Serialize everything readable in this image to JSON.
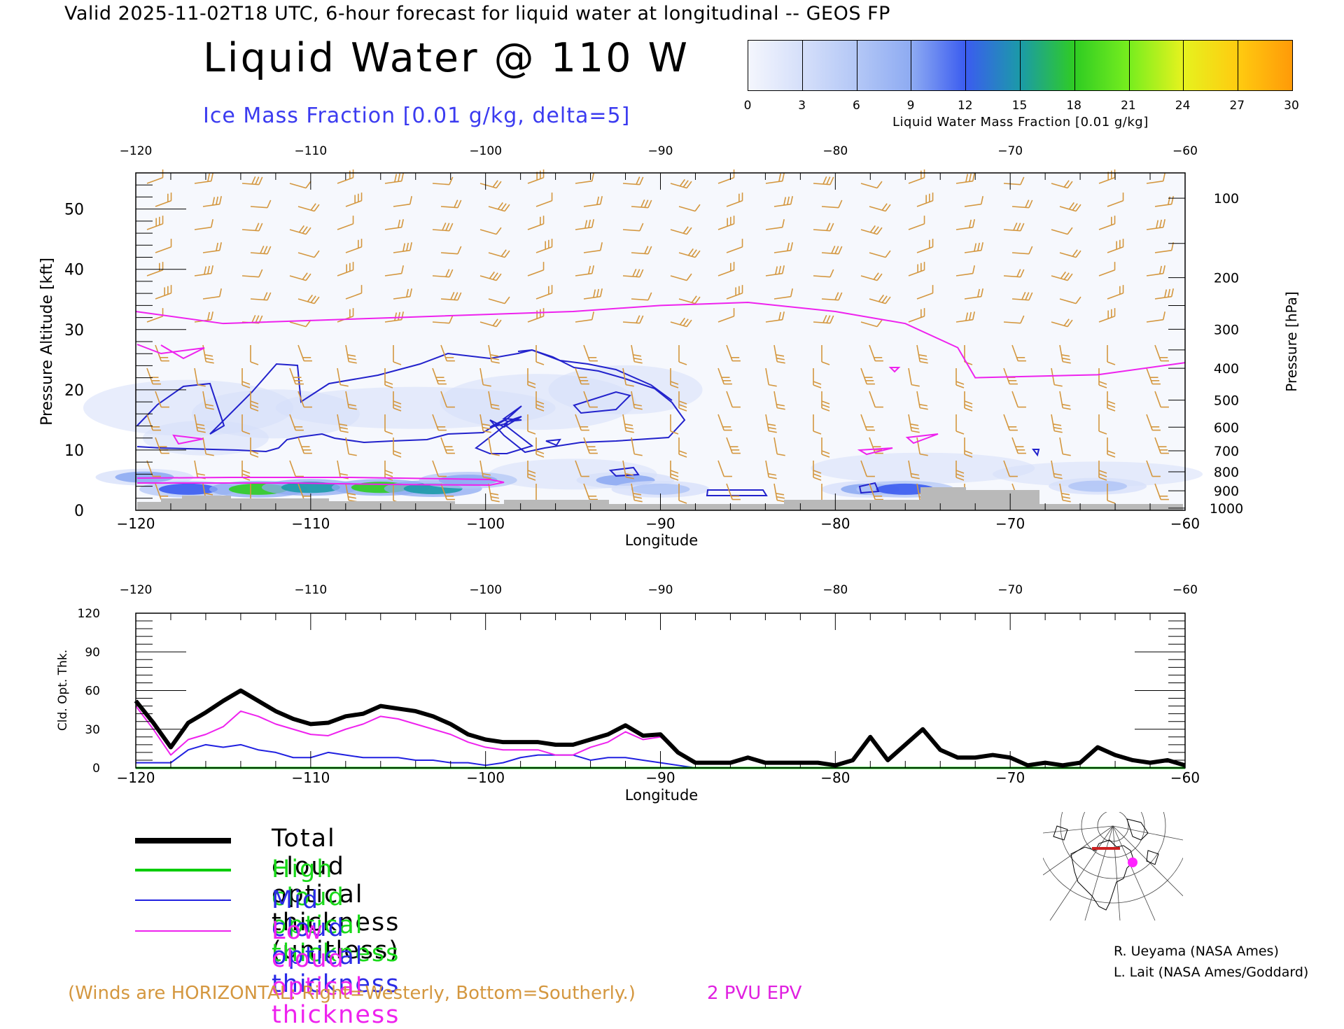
{
  "header": {
    "line": "Valid 2025-11-02T18 UTC, 6-hour forecast for liquid water at longitudinal -- GEOS FP",
    "title": "Liquid Water @ 110 W",
    "subtitle": "Ice Mass Fraction [0.01 g/kg, delta=5]"
  },
  "colorbar": {
    "ticks": [
      "0",
      "3",
      "6",
      "9",
      "12",
      "15",
      "18",
      "21",
      "24",
      "27",
      "30"
    ],
    "label": "Liquid Water Mass Fraction [0.01 g/kg]",
    "colors": [
      "#f4f6fd",
      "#d5dffa",
      "#b3c7f6",
      "#8eabf2",
      "#3b5cf0",
      "#1b9aa8",
      "#2fcc23",
      "#78ee1e",
      "#e6f21e",
      "#ffcb10",
      "#ff9a08",
      "#ff4a06"
    ]
  },
  "chart_data": [
    {
      "type": "heatmap",
      "title": "Liquid Water @ 110 W",
      "xlabel": "Longitude",
      "ylabel": "Pressure Altitude [kft]",
      "y2label": "Pressure [hPa]",
      "xlim": [
        -120,
        -60
      ],
      "ylim": [
        0,
        56
      ],
      "x_ticks": [
        "-120",
        "-110",
        "-100",
        "-90",
        "-80",
        "-70",
        "-60"
      ],
      "top_ticks": [
        "-120",
        "-110",
        "-100",
        "-90",
        "-80",
        "-70",
        "-60"
      ],
      "y_ticks": [
        "0",
        "10",
        "20",
        "30",
        "40",
        "50"
      ],
      "pressure_ticks": [
        "100",
        "200",
        "300",
        "400",
        "500",
        "600",
        "700",
        "800",
        "900",
        "1000"
      ],
      "low_level_liquid": [
        {
          "lon": -119.5,
          "alt": 5.5,
          "value": 9
        },
        {
          "lon": -117,
          "alt": 3.5,
          "value": 12
        },
        {
          "lon": -113,
          "alt": 3.5,
          "value": 17
        },
        {
          "lon": -110,
          "alt": 3.8,
          "value": 16
        },
        {
          "lon": -106,
          "alt": 3.8,
          "value": 18
        },
        {
          "lon": -103,
          "alt": 3.6,
          "value": 15
        },
        {
          "lon": -101,
          "alt": 5.0,
          "value": 10
        },
        {
          "lon": -92,
          "alt": 5.0,
          "value": 9
        },
        {
          "lon": -90,
          "alt": 3.5,
          "value": 8
        },
        {
          "lon": -78,
          "alt": 3.5,
          "value": 9
        },
        {
          "lon": -76,
          "alt": 3.5,
          "value": 12
        },
        {
          "lon": -65,
          "alt": 4.0,
          "value": 6
        }
      ],
      "tropopause_epv_kft": [
        {
          "lon": -120,
          "alt": 33
        },
        {
          "lon": -115,
          "alt": 31
        },
        {
          "lon": -105,
          "alt": 32
        },
        {
          "lon": -95,
          "alt": 33
        },
        {
          "lon": -90,
          "alt": 34
        },
        {
          "lon": -85,
          "alt": 34.5
        },
        {
          "lon": -80,
          "alt": 33
        },
        {
          "lon": -76,
          "alt": 31
        },
        {
          "lon": -73,
          "alt": 27
        },
        {
          "lon": -72,
          "alt": 22
        },
        {
          "lon": -65,
          "alt": 22.5
        },
        {
          "lon": -60,
          "alt": 24.5
        }
      ]
    },
    {
      "type": "line",
      "xlabel": "Longitude",
      "ylabel": "Cld. Opt. Thk.",
      "xlim": [
        -120,
        -60
      ],
      "ylim": [
        0,
        120
      ],
      "x_ticks": [
        "-120",
        "-110",
        "-100",
        "-90",
        "-80",
        "-70",
        "-60"
      ],
      "top_ticks": [
        "-120",
        "-110",
        "-100",
        "-90",
        "-80",
        "-70",
        "-60"
      ],
      "y_ticks": [
        "0",
        "30",
        "60",
        "90",
        "120"
      ],
      "x": [
        -120,
        -119,
        -118,
        -117,
        -116,
        -115,
        -114,
        -113,
        -112,
        -111,
        -110,
        -109,
        -108,
        -107,
        -106,
        -105,
        -104,
        -103,
        -102,
        -101,
        -100,
        -99,
        -98,
        -97,
        -96,
        -95,
        -94,
        -93,
        -92,
        -91,
        -90,
        -89,
        -88,
        -87,
        -86,
        -85,
        -84,
        -83,
        -82,
        -81,
        -80,
        -79,
        -78,
        -77,
        -76,
        -75,
        -74,
        -73,
        -72,
        -71,
        -70,
        -69,
        -68,
        -67,
        -66,
        -65,
        -64,
        -63,
        -62,
        -61,
        -60
      ],
      "series": [
        {
          "name": "Total cloud optical thickness (unitless)",
          "color": "#000000",
          "width": 6,
          "values": [
            52,
            35,
            16,
            35,
            43,
            52,
            60,
            52,
            44,
            38,
            34,
            35,
            40,
            42,
            48,
            46,
            44,
            40,
            34,
            26,
            22,
            20,
            20,
            20,
            18,
            18,
            22,
            26,
            33,
            25,
            26,
            12,
            4,
            4,
            4,
            8,
            4,
            4,
            4,
            4,
            2,
            6,
            24,
            6,
            18,
            30,
            14,
            8,
            8,
            10,
            8,
            2,
            4,
            2,
            4,
            16,
            10,
            6,
            4,
            6,
            2
          ]
        },
        {
          "name": "High cloud optical thickness",
          "color": "#00cc00",
          "width": 3,
          "values": [
            0,
            0,
            0,
            0,
            0,
            0,
            0,
            0,
            0,
            0,
            0,
            0,
            0,
            0,
            0,
            0,
            0,
            0,
            0,
            0,
            0,
            0,
            0,
            0,
            0,
            0,
            0,
            0,
            0,
            0,
            0,
            0,
            0,
            0,
            0,
            0,
            0,
            0,
            0,
            0,
            0,
            0,
            0,
            0,
            0,
            0,
            0,
            0,
            0,
            0,
            0,
            0,
            0,
            0,
            0,
            0,
            0,
            0,
            0,
            0,
            0
          ]
        },
        {
          "name": "Mid cloud optical thickness",
          "color": "#2020e0",
          "width": 2,
          "values": [
            4,
            4,
            4,
            14,
            18,
            16,
            18,
            14,
            12,
            8,
            8,
            12,
            10,
            8,
            8,
            8,
            6,
            6,
            4,
            4,
            2,
            4,
            8,
            10,
            10,
            10,
            6,
            8,
            8,
            6,
            4,
            2,
            0,
            0,
            0,
            0,
            0,
            0,
            0,
            0,
            0,
            0,
            0,
            0,
            0,
            0,
            0,
            0,
            0,
            0,
            0,
            0,
            0,
            0,
            0,
            0,
            0,
            0,
            0,
            0,
            0
          ]
        },
        {
          "name": "Low cloud optical thickness",
          "color": "#ee22ee",
          "width": 2,
          "values": [
            48,
            30,
            10,
            22,
            26,
            32,
            44,
            40,
            34,
            30,
            26,
            25,
            30,
            34,
            40,
            38,
            34,
            30,
            26,
            20,
            16,
            14,
            14,
            14,
            10,
            10,
            16,
            20,
            28,
            22,
            24,
            12,
            4,
            4,
            4,
            8,
            4,
            4,
            4,
            4,
            2,
            6,
            24,
            6,
            18,
            30,
            14,
            8,
            8,
            10,
            8,
            2,
            4,
            2,
            4,
            16,
            10,
            6,
            4,
            6,
            2
          ]
        }
      ]
    }
  ],
  "legend": [
    {
      "label": "Total cloud optical thickness (unitless)",
      "color": "#000000",
      "text_color": "#000000",
      "width": 8
    },
    {
      "label": "High cloud optical thickness",
      "color": "#00cc00",
      "text_color": "#19d919",
      "width": 4
    },
    {
      "label": "Mid cloud optical thickness",
      "color": "#2020e0",
      "text_color": "#2a2ae6",
      "width": 2
    },
    {
      "label": "Low cloud optical thickness",
      "color": "#ee22ee",
      "text_color": "#ee22ee",
      "width": 2
    }
  ],
  "credits": {
    "line1": "R. Ueyama (NASA Ames)",
    "line2": "L. Lait (NASA Ames/Goddard)"
  },
  "notes": {
    "winds": "(Winds are HORIZONTAL: Right=Westerly, Bottom=Southerly.)",
    "pvu": "2 PVU EPV"
  }
}
